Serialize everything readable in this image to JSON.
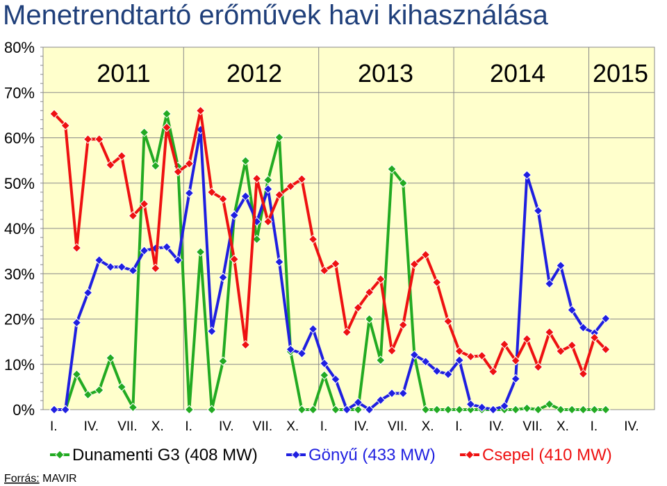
{
  "source": {
    "label": "Forrás:",
    "value": " MAVIR"
  },
  "chart_data": {
    "type": "line",
    "title": "Menetrendtartó erőművek havi kihasználása",
    "ylim": [
      0,
      80
    ],
    "y_ticks": [
      "0%",
      "10%",
      "20%",
      "30%",
      "40%",
      "50%",
      "60%",
      "70%",
      "80%"
    ],
    "x_tick_labels": [
      "I.",
      "IV.",
      "VII.",
      "X.",
      "I.",
      "IV.",
      "VII.",
      "X.",
      "I.",
      "IV.",
      "VII.",
      "X.",
      "I.",
      "IV.",
      "VII.",
      "X.",
      "I.",
      "IV."
    ],
    "year_labels": [
      "2011",
      "2012",
      "2013",
      "2014",
      "2015"
    ],
    "grid": "horizontal",
    "legend_position": "bottom",
    "series": [
      {
        "name": "Dunamenti G3 (408 MW)",
        "color": "#22aa22",
        "marker": "diamond",
        "values": [
          0,
          0,
          7.8,
          3.3,
          4.3,
          11.4,
          5.0,
          0.5,
          61.2,
          53.8,
          65.3,
          53.7,
          0,
          34.8,
          0,
          10.7,
          43.0,
          54.9,
          37.6,
          50.7,
          60.1,
          12.8,
          0,
          0,
          7.6,
          0,
          0,
          0,
          20.0,
          10.9,
          53.1,
          50.0,
          12.0,
          0,
          0,
          0,
          0,
          0,
          0,
          0,
          0,
          0,
          0.3,
          0,
          1.2,
          0,
          0,
          0,
          0,
          0
        ]
      },
      {
        "name": "Gönyű (433 MW)",
        "color": "#1f1fe0",
        "marker": "diamond",
        "values": [
          0,
          0,
          19.2,
          25.8,
          33.0,
          31.5,
          31.5,
          30.7,
          35.1,
          35.6,
          35.9,
          33.0,
          47.8,
          61.8,
          17.3,
          29.2,
          42.9,
          47.1,
          41.5,
          48.7,
          32.6,
          13.3,
          12.4,
          17.8,
          10.2,
          6.7,
          0,
          1.6,
          0,
          2.1,
          3.6,
          3.6,
          12.1,
          10.6,
          8.5,
          7.8,
          10.9,
          1.2,
          0.5,
          0,
          0.8,
          6.8,
          51.8,
          43.9,
          27.8,
          31.8,
          22.0,
          18.1,
          16.9,
          20.1
        ]
      },
      {
        "name": "Csepel (410 MW)",
        "color": "#ee1111",
        "marker": "diamond",
        "values": [
          65.3,
          62.7,
          35.7,
          59.7,
          59.7,
          54.0,
          56.0,
          42.8,
          45.4,
          31.2,
          62.3,
          52.5,
          54.3,
          66.0,
          48.0,
          46.5,
          33.2,
          14.3,
          51.0,
          41.5,
          47.4,
          49.3,
          50.9,
          37.6,
          30.7,
          32.2,
          17.1,
          22.5,
          25.9,
          28.8,
          13.0,
          18.7,
          32.1,
          34.2,
          28.1,
          19.5,
          12.9,
          11.7,
          11.9,
          8.4,
          14.4,
          10.8,
          15.6,
          9.4,
          17.1,
          12.9,
          14.2,
          7.9,
          15.9,
          13.3
        ]
      }
    ]
  }
}
